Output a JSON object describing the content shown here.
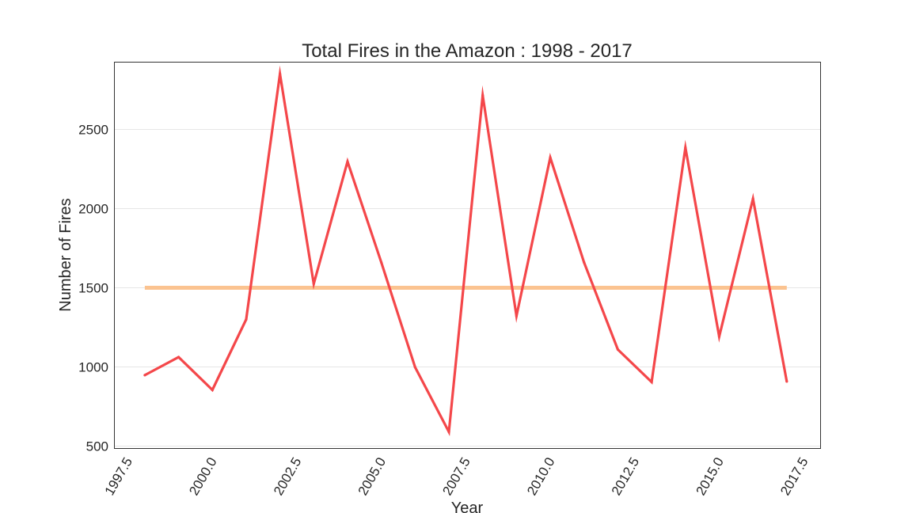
{
  "chart_data": {
    "type": "line",
    "title": "Total Fires in the Amazon : 1998 - 2017",
    "xlabel": "Year",
    "ylabel": "Number of Fires",
    "xlim": [
      1997.1,
      2018.0
    ],
    "ylim": [
      485,
      2925
    ],
    "xticks": [
      1997.5,
      2000.0,
      2002.5,
      2005.0,
      2007.5,
      2010.0,
      2012.5,
      2015.0,
      2017.5
    ],
    "xtick_labels": [
      "1997.5",
      "2000.0",
      "2002.5",
      "2005.0",
      "2007.5",
      "2010.0",
      "2012.5",
      "2015.0",
      "2017.5"
    ],
    "yticks": [
      500,
      1000,
      1500,
      2000,
      2500
    ],
    "ytick_labels": [
      "500",
      "1000",
      "1500",
      "2000",
      "2500"
    ],
    "grid": "y",
    "series": [
      {
        "color": "#f4474a",
        "x": [
          1998,
          1999,
          2000,
          2001,
          2002,
          2003,
          2004,
          2005,
          2006,
          2007,
          2008,
          2009,
          2010,
          2011,
          2012,
          2013,
          2014,
          2015,
          2016,
          2017
        ],
        "y": [
          948,
          1062,
          855,
          1300,
          2850,
          1525,
          2297,
          1660,
          998,
          590,
          2715,
          1322,
          2322,
          1660,
          1110,
          905,
          2385,
          1192,
          2062,
          908
        ]
      },
      {
        "color": "#fbc390",
        "x": [
          1998,
          2017
        ],
        "y": [
          1500,
          1500
        ]
      }
    ]
  }
}
